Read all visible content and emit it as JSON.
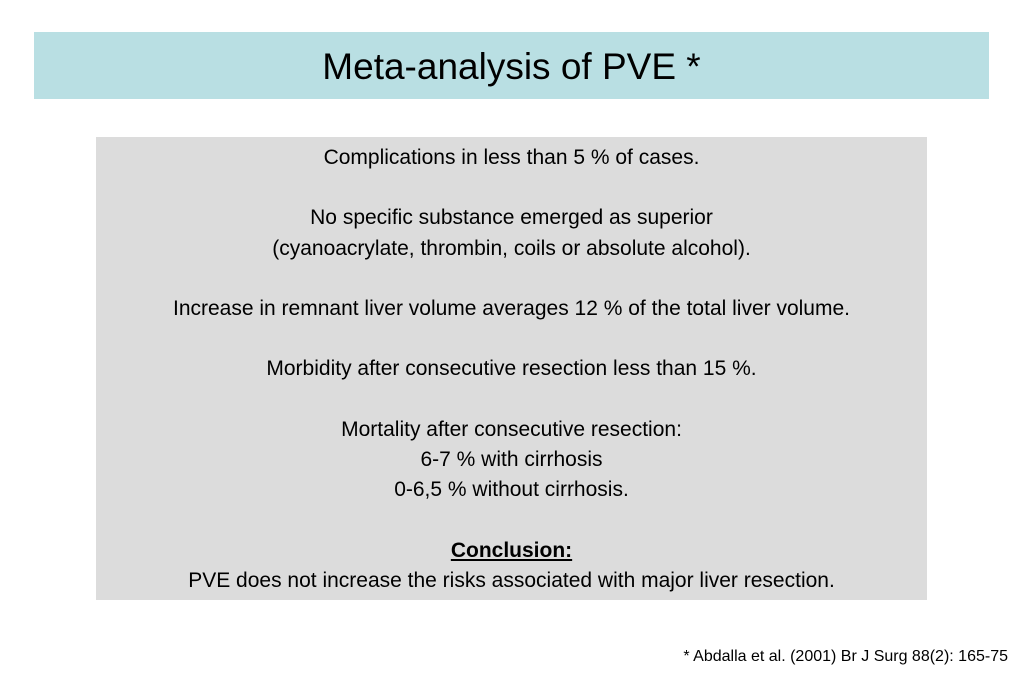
{
  "slide": {
    "title": "Meta-analysis of PVE *",
    "colors": {
      "title_background": "#b9dfe3",
      "content_background": "#dcdcdc"
    }
  },
  "content": {
    "complications": "Complications in less than 5 % of cases.",
    "substance_line1": "No specific substance emerged as superior",
    "substance_line2": "(cyanoacrylate, thrombin, coils or absolute alcohol).",
    "liver_volume": "Increase in remnant liver volume averages 12 % of the total liver volume.",
    "morbidity": "Morbidity after consecutive resection less than 15 %.",
    "mortality_heading": "Mortality after consecutive resection:",
    "mortality_cirrhosis": "6-7 % with cirrhosis",
    "mortality_no_cirrhosis": "0-6,5 % without cirrhosis.",
    "conclusion_heading": "Conclusion:",
    "conclusion_text": "PVE does not increase the risks associated with major liver resection."
  },
  "footnote": "* Abdalla et al. (2001) Br J Surg 88(2): 165-75"
}
